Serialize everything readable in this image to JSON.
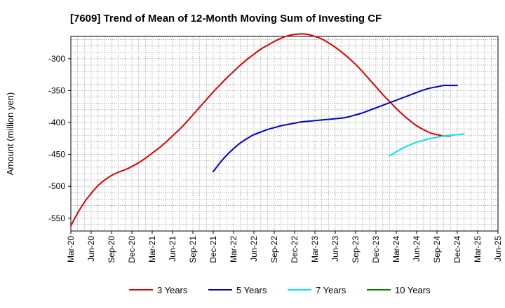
{
  "chart_data": {
    "type": "line",
    "title": "[7609]  Trend of Mean of 12-Month Moving Sum of Investing CF",
    "xlabel": "",
    "ylabel": "Amount (million yen)",
    "ylim": [
      -570,
      -265
    ],
    "yticks": [
      -550,
      -500,
      -450,
      -400,
      -350,
      -300
    ],
    "grid": true,
    "legend_position": "bottom",
    "x_tick_labels": [
      "Mar-20",
      "Jun-20",
      "Sep-20",
      "Dec-20",
      "Mar-21",
      "Jun-21",
      "Sep-21",
      "Dec-21",
      "Mar-22",
      "Jun-22",
      "Sep-22",
      "Dec-22",
      "Mar-23",
      "Jun-23",
      "Sep-23",
      "Dec-23",
      "Mar-24",
      "Jun-24",
      "Sep-24",
      "Dec-24",
      "Mar-25",
      "Jun-25"
    ],
    "series": [
      {
        "name": "3 Years",
        "color": "#dd0000",
        "start_index": 0,
        "values": [
          -562,
          -542,
          -525,
          -511,
          -499,
          -490,
          -483,
          -478,
          -474,
          -469,
          -463,
          -456,
          -448,
          -440,
          -431,
          -421,
          -411,
          -400,
          -388,
          -376,
          -364,
          -352,
          -341,
          -330,
          -320,
          -310,
          -301,
          -293,
          -285,
          -279,
          -273,
          -268,
          -264,
          -262,
          -261,
          -262,
          -265,
          -269,
          -275,
          -282,
          -290,
          -299,
          -309,
          -320,
          -332,
          -344,
          -356,
          -367,
          -378,
          -388,
          -397,
          -405,
          -411,
          -416,
          -419,
          -421,
          -421
        ]
      },
      {
        "name": "5 Years",
        "color": "#0000cc",
        "start_index": 21,
        "values": [
          -477,
          -463,
          -451,
          -441,
          -432,
          -425,
          -419,
          -415,
          -411,
          -408,
          -405,
          -403,
          -401,
          -399,
          -398,
          -397,
          -396,
          -395,
          -394,
          -393,
          -391,
          -388,
          -385,
          -381,
          -377,
          -373,
          -369,
          -365,
          -361,
          -357,
          -353,
          -349,
          -346,
          -344,
          -342,
          -342,
          -342
        ]
      },
      {
        "name": "7 Years",
        "color": "#00e5ee",
        "start_index": 47,
        "values": [
          -452,
          -446,
          -440,
          -435,
          -431,
          -428,
          -425,
          -423,
          -421,
          -420,
          -419,
          -418
        ]
      },
      {
        "name": "10 Years",
        "color": "#008000",
        "start_index": 0,
        "values": []
      }
    ]
  }
}
